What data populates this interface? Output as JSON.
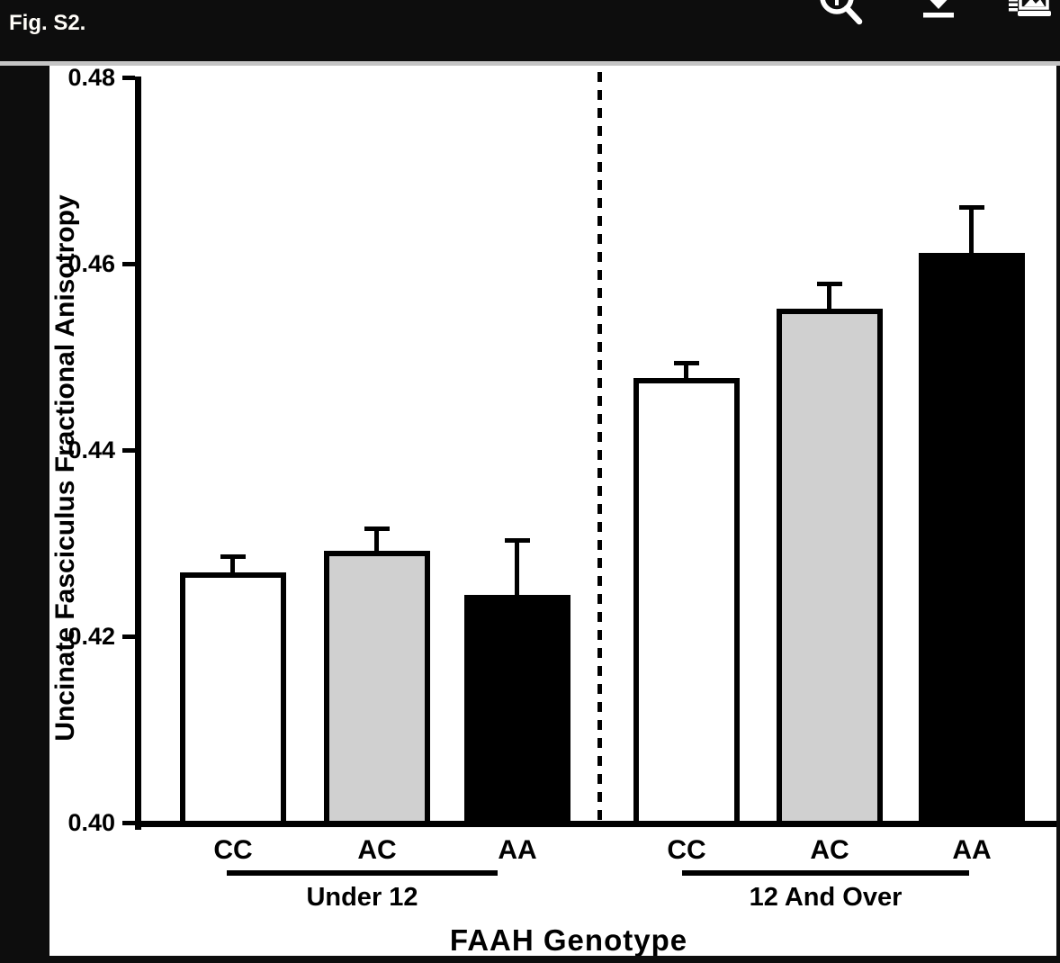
{
  "window": {
    "header": {
      "title": "Fig. S2.",
      "toolbar": [
        {
          "label": "zoom",
          "icon": "magnifier-icon"
        },
        {
          "label": "download",
          "icon": "download-icon"
        },
        {
          "label": "figures",
          "icon": "figures-panel-icon"
        }
      ]
    }
  },
  "colors": {
    "chrome_black": "#0d0d0d",
    "separator_gray": "#c4c4c4",
    "canvas_white": "#ffffff",
    "bar_white": "#ffffff",
    "bar_gray": "#d0d0d0",
    "bar_black": "#000000",
    "ink_black": "#000000",
    "icon_white": "#ffffff"
  },
  "chart_data": {
    "type": "bar",
    "title": "Fig. S2.",
    "xlabel": "FAAH Genotype",
    "ylabel": "Uncinate Fasciculus Fractional Anisotropy",
    "ylim": [
      0.4,
      0.48
    ],
    "ytick_values": [
      0.48,
      0.46,
      0.44,
      0.42,
      0.4
    ],
    "ytick_labels": [
      "0.48",
      "0.46",
      "0.44",
      "0.42",
      "0.40"
    ],
    "grid": "off",
    "legend_position": "none",
    "error_bars": "upper SEM whiskers with caps",
    "group_divider": "vertical dashed line between age groups",
    "groups": [
      {
        "label": "Under 12",
        "categories": [
          "CC",
          "AC",
          "AA"
        ],
        "values": [
          0.427,
          0.4293,
          0.4245
        ],
        "sem": [
          0.0019,
          0.0026,
          0.0061
        ],
        "bar_fills": [
          "#ffffff",
          "#d0d0d0",
          "#000000"
        ]
      },
      {
        "label": "12 And Over",
        "categories": [
          "CC",
          "AC",
          "AA"
        ],
        "values": [
          0.4478,
          0.4553,
          0.4613
        ],
        "sem": [
          0.0019,
          0.0029,
          0.0051
        ],
        "bar_fills": [
          "#ffffff",
          "#d0d0d0",
          "#000000"
        ]
      }
    ]
  }
}
